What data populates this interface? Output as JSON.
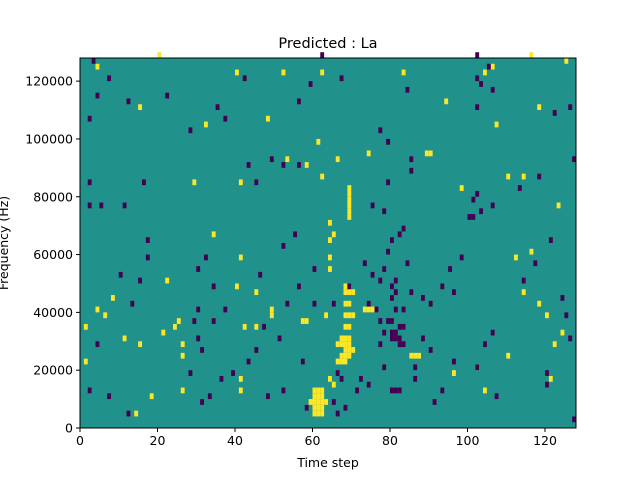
{
  "chart_data": {
    "type": "heatmap",
    "title": "Predicted : La",
    "xlabel": "Time step",
    "ylabel": "Frequency (Hz)",
    "xlim": [
      0,
      128
    ],
    "ylim": [
      0,
      128000
    ],
    "x_ticks": [
      0,
      20,
      40,
      60,
      80,
      100,
      120
    ],
    "y_ticks": [
      0,
      20000,
      40000,
      60000,
      80000,
      100000,
      120000
    ],
    "y_tick_labels": [
      "0",
      "20000",
      "40000",
      "60000",
      "80000",
      "100000",
      "120000"
    ],
    "n_time_steps": 128,
    "n_freq_bins": 64,
    "bin_height_hz": 2000,
    "colormap": {
      "low": "#440154",
      "mid": "#21918c",
      "high": "#fde725"
    },
    "background_value": 0,
    "low_value": -1,
    "high_value": 1,
    "cells_note": "each entry: [time_step, frequency_bin_start_Hz, value]",
    "cells": [
      [
        60,
        4000,
        1
      ],
      [
        61,
        4000,
        1
      ],
      [
        62,
        4000,
        1
      ],
      [
        60,
        6000,
        1
      ],
      [
        61,
        6000,
        1
      ],
      [
        62,
        6000,
        1
      ],
      [
        59,
        8000,
        1
      ],
      [
        60,
        8000,
        1
      ],
      [
        61,
        8000,
        1
      ],
      [
        62,
        8000,
        1
      ],
      [
        63,
        8000,
        1
      ],
      [
        60,
        10000,
        1
      ],
      [
        61,
        10000,
        1
      ],
      [
        62,
        10000,
        1
      ],
      [
        60,
        12000,
        1
      ],
      [
        61,
        12000,
        1
      ],
      [
        62,
        12000,
        1
      ],
      [
        66,
        22000,
        1
      ],
      [
        67,
        22000,
        1
      ],
      [
        68,
        22000,
        1
      ],
      [
        67,
        24000,
        1
      ],
      [
        68,
        24000,
        1
      ],
      [
        69,
        24000,
        1
      ],
      [
        68,
        26000,
        1
      ],
      [
        69,
        26000,
        1
      ],
      [
        70,
        26000,
        1
      ],
      [
        66,
        28000,
        1
      ],
      [
        67,
        28000,
        1
      ],
      [
        68,
        28000,
        1
      ],
      [
        69,
        28000,
        1
      ],
      [
        67,
        30000,
        1
      ],
      [
        68,
        30000,
        1
      ],
      [
        69,
        30000,
        1
      ],
      [
        68,
        34000,
        1
      ],
      [
        69,
        34000,
        1
      ],
      [
        68,
        38000,
        1
      ],
      [
        69,
        38000,
        1
      ],
      [
        70,
        38000,
        1
      ],
      [
        68,
        42000,
        1
      ],
      [
        69,
        42000,
        1
      ],
      [
        68,
        46000,
        1
      ],
      [
        69,
        46000,
        1
      ],
      [
        70,
        46000,
        1
      ],
      [
        68,
        48000,
        1
      ],
      [
        69,
        48000,
        1
      ],
      [
        63,
        38000,
        1
      ],
      [
        64,
        54000,
        1
      ],
      [
        64,
        58000,
        1
      ],
      [
        64,
        64000,
        1
      ],
      [
        65,
        66000,
        1
      ],
      [
        64,
        70000,
        1
      ],
      [
        69,
        72000,
        1
      ],
      [
        69,
        74000,
        1
      ],
      [
        69,
        76000,
        1
      ],
      [
        69,
        78000,
        1
      ],
      [
        69,
        80000,
        1
      ],
      [
        69,
        82000,
        1
      ],
      [
        89,
        94000,
        1
      ],
      [
        90,
        94000,
        1
      ],
      [
        26,
        12000,
        1
      ],
      [
        26,
        24000,
        1
      ],
      [
        26,
        28000,
        1
      ],
      [
        24,
        34000,
        1
      ],
      [
        25,
        36000,
        1
      ],
      [
        21,
        32000,
        1
      ],
      [
        41,
        16000,
        1
      ],
      [
        41,
        12000,
        1
      ],
      [
        42,
        34000,
        1
      ],
      [
        45,
        34000,
        1
      ],
      [
        57,
        36000,
        1
      ],
      [
        58,
        36000,
        1
      ],
      [
        49,
        38000,
        1
      ],
      [
        49,
        40000,
        1
      ],
      [
        65,
        14000,
        1
      ],
      [
        64,
        16000,
        1
      ],
      [
        73,
        40000,
        1
      ],
      [
        74,
        40000,
        1
      ],
      [
        75,
        40000,
        1
      ],
      [
        85,
        24000,
        1
      ],
      [
        86,
        24000,
        1
      ],
      [
        87,
        24000,
        1
      ],
      [
        22,
        50000,
        1
      ],
      [
        15,
        28000,
        1
      ],
      [
        11,
        30000,
        1
      ],
      [
        1,
        22000,
        1
      ],
      [
        1,
        34000,
        1
      ],
      [
        14,
        4000,
        1
      ],
      [
        18,
        10000,
        1
      ],
      [
        29,
        84000,
        1
      ],
      [
        41,
        84000,
        1
      ],
      [
        4,
        124000,
        1
      ],
      [
        20,
        128000,
        1
      ],
      [
        40,
        122000,
        1
      ],
      [
        52,
        122000,
        1
      ],
      [
        62,
        122000,
        1
      ],
      [
        83,
        122000,
        1
      ],
      [
        104,
        122000,
        1
      ],
      [
        106,
        124000,
        1
      ],
      [
        116,
        128000,
        1
      ],
      [
        125,
        126000,
        1
      ],
      [
        15,
        110000,
        1
      ],
      [
        32,
        104000,
        1
      ],
      [
        48,
        106000,
        1
      ],
      [
        61,
        98000,
        1
      ],
      [
        74,
        94000,
        1
      ],
      [
        94,
        112000,
        1
      ],
      [
        107,
        104000,
        1
      ],
      [
        118,
        110000,
        1
      ],
      [
        116,
        60000,
        1
      ],
      [
        112,
        58000,
        1
      ],
      [
        114,
        46000,
        1
      ],
      [
        118,
        42000,
        1
      ],
      [
        120,
        38000,
        1
      ],
      [
        124,
        32000,
        1
      ],
      [
        122,
        28000,
        1
      ],
      [
        110,
        24000,
        1
      ],
      [
        102,
        20000,
        1
      ],
      [
        96,
        18000,
        1
      ],
      [
        104,
        12000,
        1
      ],
      [
        121,
        16000,
        1
      ],
      [
        98,
        82000,
        1
      ],
      [
        110,
        86000,
        1
      ],
      [
        114,
        86000,
        1
      ],
      [
        123,
        76000,
        1
      ],
      [
        53,
        92000,
        1
      ],
      [
        66,
        92000,
        1
      ],
      [
        58,
        90000,
        1
      ],
      [
        62,
        86000,
        1
      ],
      [
        34,
        66000,
        1
      ],
      [
        41,
        58000,
        1
      ],
      [
        45,
        46000,
        1
      ],
      [
        40,
        48000,
        1
      ],
      [
        4,
        40000,
        1
      ],
      [
        6,
        38000,
        1
      ],
      [
        8,
        44000,
        1
      ]
    ],
    "low_cells": [
      [
        80,
        12000,
        -1
      ],
      [
        81,
        12000,
        -1
      ],
      [
        82,
        12000,
        -1
      ],
      [
        80,
        30000,
        -1
      ],
      [
        81,
        30000,
        -1
      ],
      [
        82,
        30000,
        -1
      ],
      [
        80,
        32000,
        -1
      ],
      [
        81,
        32000,
        -1
      ],
      [
        82,
        34000,
        -1
      ],
      [
        83,
        34000,
        -1
      ],
      [
        82,
        28000,
        -1
      ],
      [
        83,
        28000,
        -1
      ],
      [
        79,
        36000,
        -1
      ],
      [
        80,
        36000,
        -1
      ],
      [
        81,
        40000,
        -1
      ],
      [
        83,
        40000,
        -1
      ],
      [
        80,
        44000,
        -1
      ],
      [
        80,
        48000,
        -1
      ],
      [
        81,
        50000,
        -1
      ],
      [
        85,
        46000,
        -1
      ],
      [
        78,
        54000,
        -1
      ],
      [
        79,
        60000,
        -1
      ],
      [
        80,
        64000,
        -1
      ],
      [
        83,
        68000,
        -1
      ],
      [
        74,
        42000,
        -1
      ],
      [
        76,
        40000,
        -1
      ],
      [
        77,
        36000,
        -1
      ],
      [
        78,
        32000,
        -1
      ],
      [
        77,
        28000,
        -1
      ],
      [
        78,
        20000,
        -1
      ],
      [
        72,
        16000,
        -1
      ],
      [
        74,
        14000,
        -1
      ],
      [
        66,
        18000,
        -1
      ],
      [
        67,
        16000,
        -1
      ],
      [
        65,
        8000,
        -1
      ],
      [
        66,
        4000,
        -1
      ],
      [
        68,
        6000,
        -1
      ],
      [
        71,
        12000,
        -1
      ],
      [
        86,
        20000,
        -1
      ],
      [
        86,
        16000,
        -1
      ],
      [
        88,
        30000,
        -1
      ],
      [
        90,
        26000,
        -1
      ],
      [
        91,
        8000,
        -1
      ],
      [
        93,
        12000,
        -1
      ],
      [
        96,
        22000,
        -1
      ],
      [
        102,
        20000,
        -1
      ],
      [
        104,
        28000,
        -1
      ],
      [
        106,
        32000,
        -1
      ],
      [
        96,
        46000,
        -1
      ],
      [
        98,
        58000,
        -1
      ],
      [
        100,
        72000,
        -1
      ],
      [
        101,
        72000,
        -1
      ],
      [
        101,
        78000,
        -1
      ],
      [
        102,
        80000,
        -1
      ],
      [
        102,
        120000,
        -1
      ],
      [
        103,
        118000,
        -1
      ],
      [
        102,
        128000,
        -1
      ],
      [
        105,
        124000,
        -1
      ],
      [
        102,
        110000,
        -1
      ],
      [
        127,
        2000,
        -1
      ],
      [
        106,
        116000,
        -1
      ],
      [
        122,
        108000,
        -1
      ],
      [
        126,
        110000,
        -1
      ],
      [
        121,
        64000,
        -1
      ],
      [
        124,
        44000,
        -1
      ],
      [
        125,
        38000,
        -1
      ],
      [
        126,
        30000,
        -1
      ],
      [
        120,
        18000,
        -1
      ],
      [
        120,
        14000,
        -1
      ],
      [
        107,
        10000,
        -1
      ],
      [
        3,
        126000,
        -1
      ],
      [
        7,
        120000,
        -1
      ],
      [
        4,
        114000,
        -1
      ],
      [
        2,
        106000,
        -1
      ],
      [
        12,
        112000,
        -1
      ],
      [
        22,
        114000,
        -1
      ],
      [
        28,
        102000,
        -1
      ],
      [
        35,
        110000,
        -1
      ],
      [
        37,
        106000,
        -1
      ],
      [
        42,
        120000,
        -1
      ],
      [
        43,
        90000,
        -1
      ],
      [
        45,
        84000,
        -1
      ],
      [
        49,
        92000,
        -1
      ],
      [
        52,
        90000,
        -1
      ],
      [
        56,
        90000,
        -1
      ],
      [
        56,
        112000,
        -1
      ],
      [
        59,
        118000,
        -1
      ],
      [
        62,
        128000,
        -1
      ],
      [
        67,
        120000,
        -1
      ],
      [
        77,
        102000,
        -1
      ],
      [
        79,
        98000,
        -1
      ],
      [
        84,
        116000,
        -1
      ],
      [
        85,
        92000,
        -1
      ],
      [
        85,
        88000,
        -1
      ],
      [
        79,
        84000,
        -1
      ],
      [
        75,
        76000,
        -1
      ],
      [
        78,
        74000,
        -1
      ],
      [
        82,
        66000,
        -1
      ],
      [
        73,
        56000,
        -1
      ],
      [
        75,
        52000,
        -1
      ],
      [
        77,
        50000,
        -1
      ],
      [
        69,
        48000,
        -1
      ],
      [
        65,
        42000,
        -1
      ],
      [
        60,
        42000,
        -1
      ],
      [
        56,
        48000,
        -1
      ],
      [
        53,
        42000,
        -1
      ],
      [
        51,
        30000,
        -1
      ],
      [
        47,
        34000,
        -1
      ],
      [
        45,
        26000,
        -1
      ],
      [
        43,
        22000,
        -1
      ],
      [
        39,
        18000,
        -1
      ],
      [
        36,
        16000,
        -1
      ],
      [
        31,
        26000,
        -1
      ],
      [
        30,
        30000,
        -1
      ],
      [
        34,
        36000,
        -1
      ],
      [
        37,
        40000,
        -1
      ],
      [
        48,
        10000,
        -1
      ],
      [
        52,
        12000,
        -1
      ],
      [
        57,
        22000,
        -1
      ],
      [
        58,
        6000,
        -1
      ],
      [
        2,
        84000,
        -1
      ],
      [
        2,
        76000,
        -1
      ],
      [
        5,
        76000,
        -1
      ],
      [
        11,
        76000,
        -1
      ],
      [
        16,
        84000,
        -1
      ],
      [
        17,
        64000,
        -1
      ],
      [
        17,
        58000,
        -1
      ],
      [
        15,
        50000,
        -1
      ],
      [
        13,
        42000,
        -1
      ],
      [
        10,
        52000,
        -1
      ],
      [
        4,
        28000,
        -1
      ],
      [
        2,
        12000,
        -1
      ],
      [
        7,
        10000,
        -1
      ],
      [
        12,
        4000,
        -1
      ],
      [
        31,
        8000,
        -1
      ],
      [
        33,
        10000,
        -1
      ],
      [
        28,
        18000,
        -1
      ],
      [
        29,
        36000,
        -1
      ],
      [
        30,
        40000,
        -1
      ],
      [
        34,
        48000,
        -1
      ],
      [
        30,
        54000,
        -1
      ],
      [
        32,
        58000,
        -1
      ],
      [
        46,
        52000,
        -1
      ],
      [
        52,
        62000,
        -1
      ],
      [
        55,
        66000,
        -1
      ],
      [
        60,
        54000,
        -1
      ],
      [
        81,
        46000,
        -1
      ],
      [
        84,
        56000,
        -1
      ],
      [
        88,
        44000,
        -1
      ],
      [
        90,
        42000,
        -1
      ],
      [
        93,
        48000,
        -1
      ],
      [
        95,
        54000,
        -1
      ],
      [
        103,
        74000,
        -1
      ],
      [
        106,
        76000,
        -1
      ],
      [
        114,
        50000,
        -1
      ],
      [
        117,
        56000,
        -1
      ],
      [
        127,
        92000,
        -1
      ],
      [
        118,
        86000,
        -1
      ],
      [
        113,
        82000,
        -1
      ]
    ]
  }
}
